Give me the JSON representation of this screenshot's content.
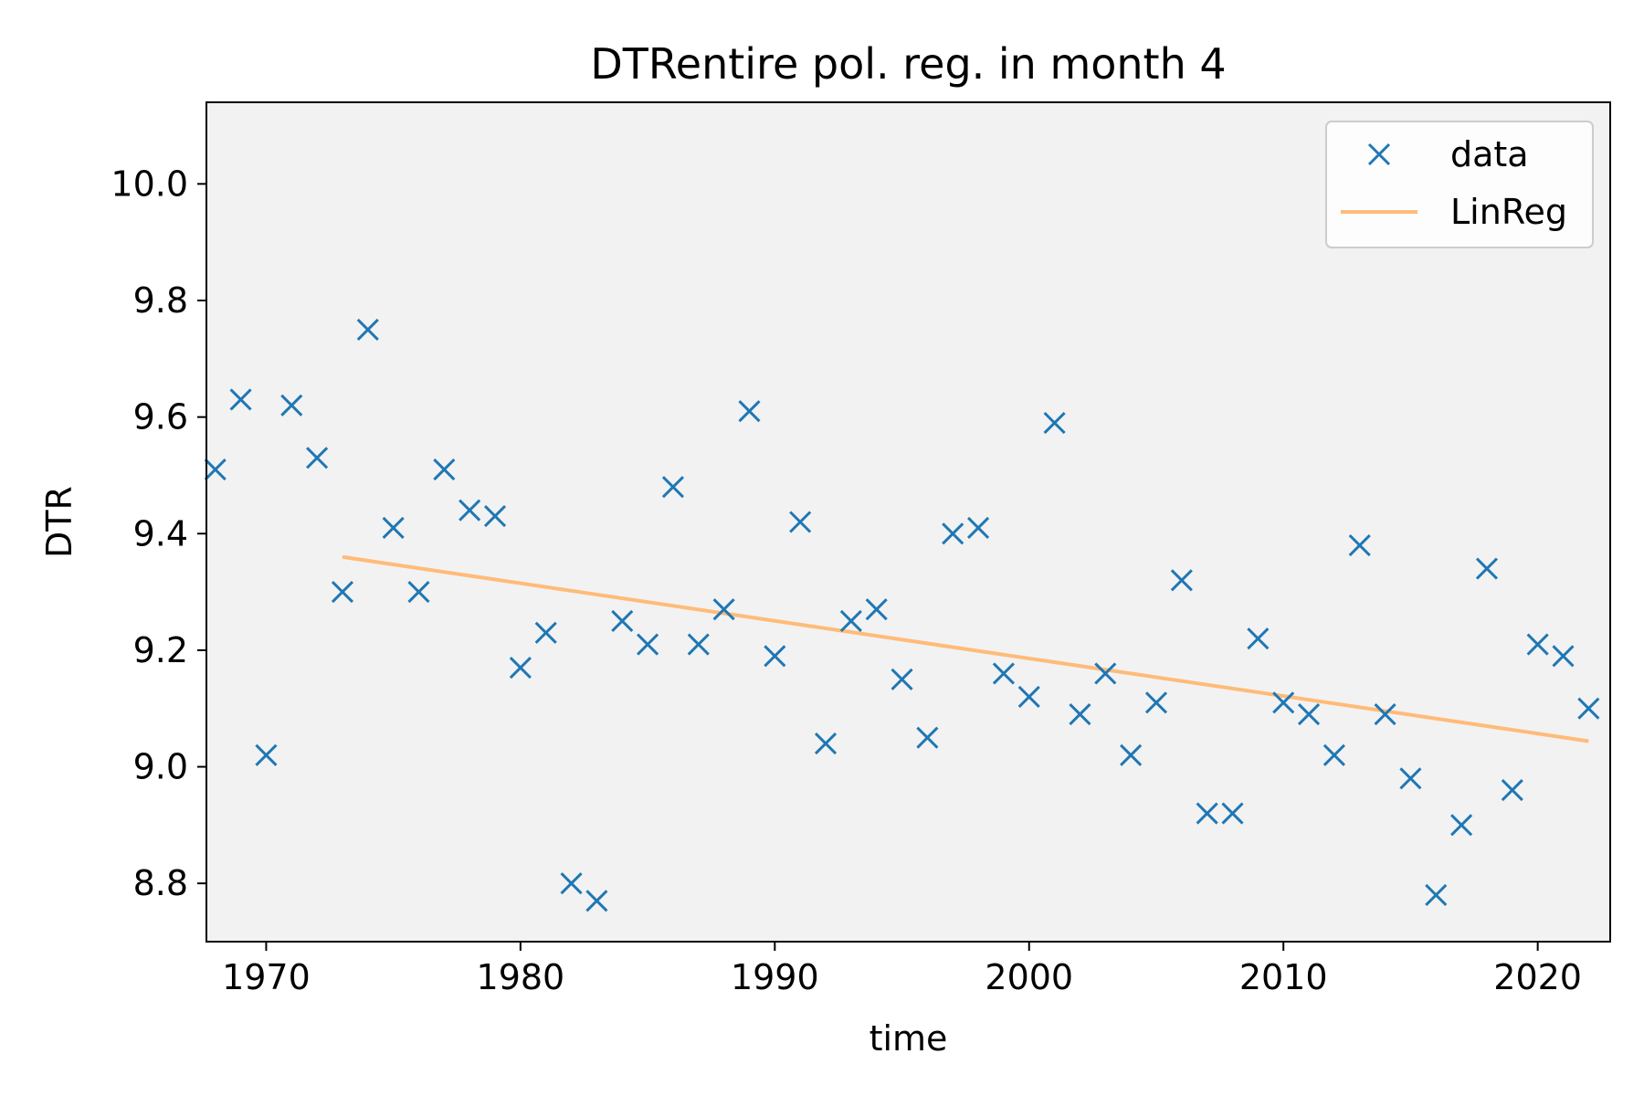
{
  "chart_data": {
    "type": "scatter",
    "title": "DTRentire pol. reg. in month 4",
    "xlabel": "time",
    "ylabel": "DTR",
    "xlim": [
      1967.65,
      2022.85
    ],
    "ylim": [
      8.7,
      10.14
    ],
    "xticks": [
      1970,
      1980,
      1990,
      2000,
      2010,
      2020
    ],
    "yticks": [
      8.8,
      9.0,
      9.2,
      9.4,
      9.6,
      9.8,
      10.0
    ],
    "ytick_labels": [
      "8.8",
      "9.0",
      "9.2",
      "9.4",
      "9.6",
      "9.8",
      "10.0"
    ],
    "grid": false,
    "legend": {
      "position": "top-right",
      "entries": [
        "data",
        "LinReg"
      ]
    },
    "series": [
      {
        "name": "data",
        "kind": "scatter",
        "marker": "x",
        "color": "#1f77b4",
        "x": [
          1968,
          1969,
          1970,
          1971,
          1972,
          1973,
          1974,
          1975,
          1976,
          1977,
          1978,
          1979,
          1980,
          1981,
          1982,
          1983,
          1984,
          1985,
          1986,
          1987,
          1988,
          1989,
          1990,
          1991,
          1992,
          1993,
          1994,
          1995,
          1996,
          1997,
          1998,
          1999,
          2000,
          2001,
          2002,
          2003,
          2004,
          2005,
          2006,
          2007,
          2008,
          2009,
          2010,
          2011,
          2012,
          2013,
          2014,
          2015,
          2016,
          2017,
          2018,
          2019,
          2020,
          2021,
          2022
        ],
        "y": [
          9.51,
          9.63,
          9.02,
          9.62,
          9.53,
          9.3,
          9.75,
          9.41,
          9.3,
          9.51,
          9.44,
          9.43,
          9.17,
          9.23,
          8.8,
          8.77,
          9.25,
          9.21,
          9.48,
          9.21,
          9.27,
          9.61,
          9.19,
          9.42,
          9.04,
          9.25,
          9.27,
          9.15,
          9.05,
          9.4,
          9.41,
          9.16,
          9.12,
          9.59,
          9.09,
          9.16,
          9.02,
          9.11,
          9.32,
          8.92,
          8.92,
          9.22,
          9.11,
          9.09,
          9.02,
          9.38,
          9.09,
          8.98,
          8.78,
          8.9,
          9.34,
          8.96,
          9.21,
          9.19,
          9.1
        ]
      },
      {
        "name": "LinReg",
        "kind": "line",
        "color": "#ffbb78",
        "x": [
          1973,
          2022
        ],
        "y": [
          9.36,
          9.044
        ]
      }
    ]
  }
}
